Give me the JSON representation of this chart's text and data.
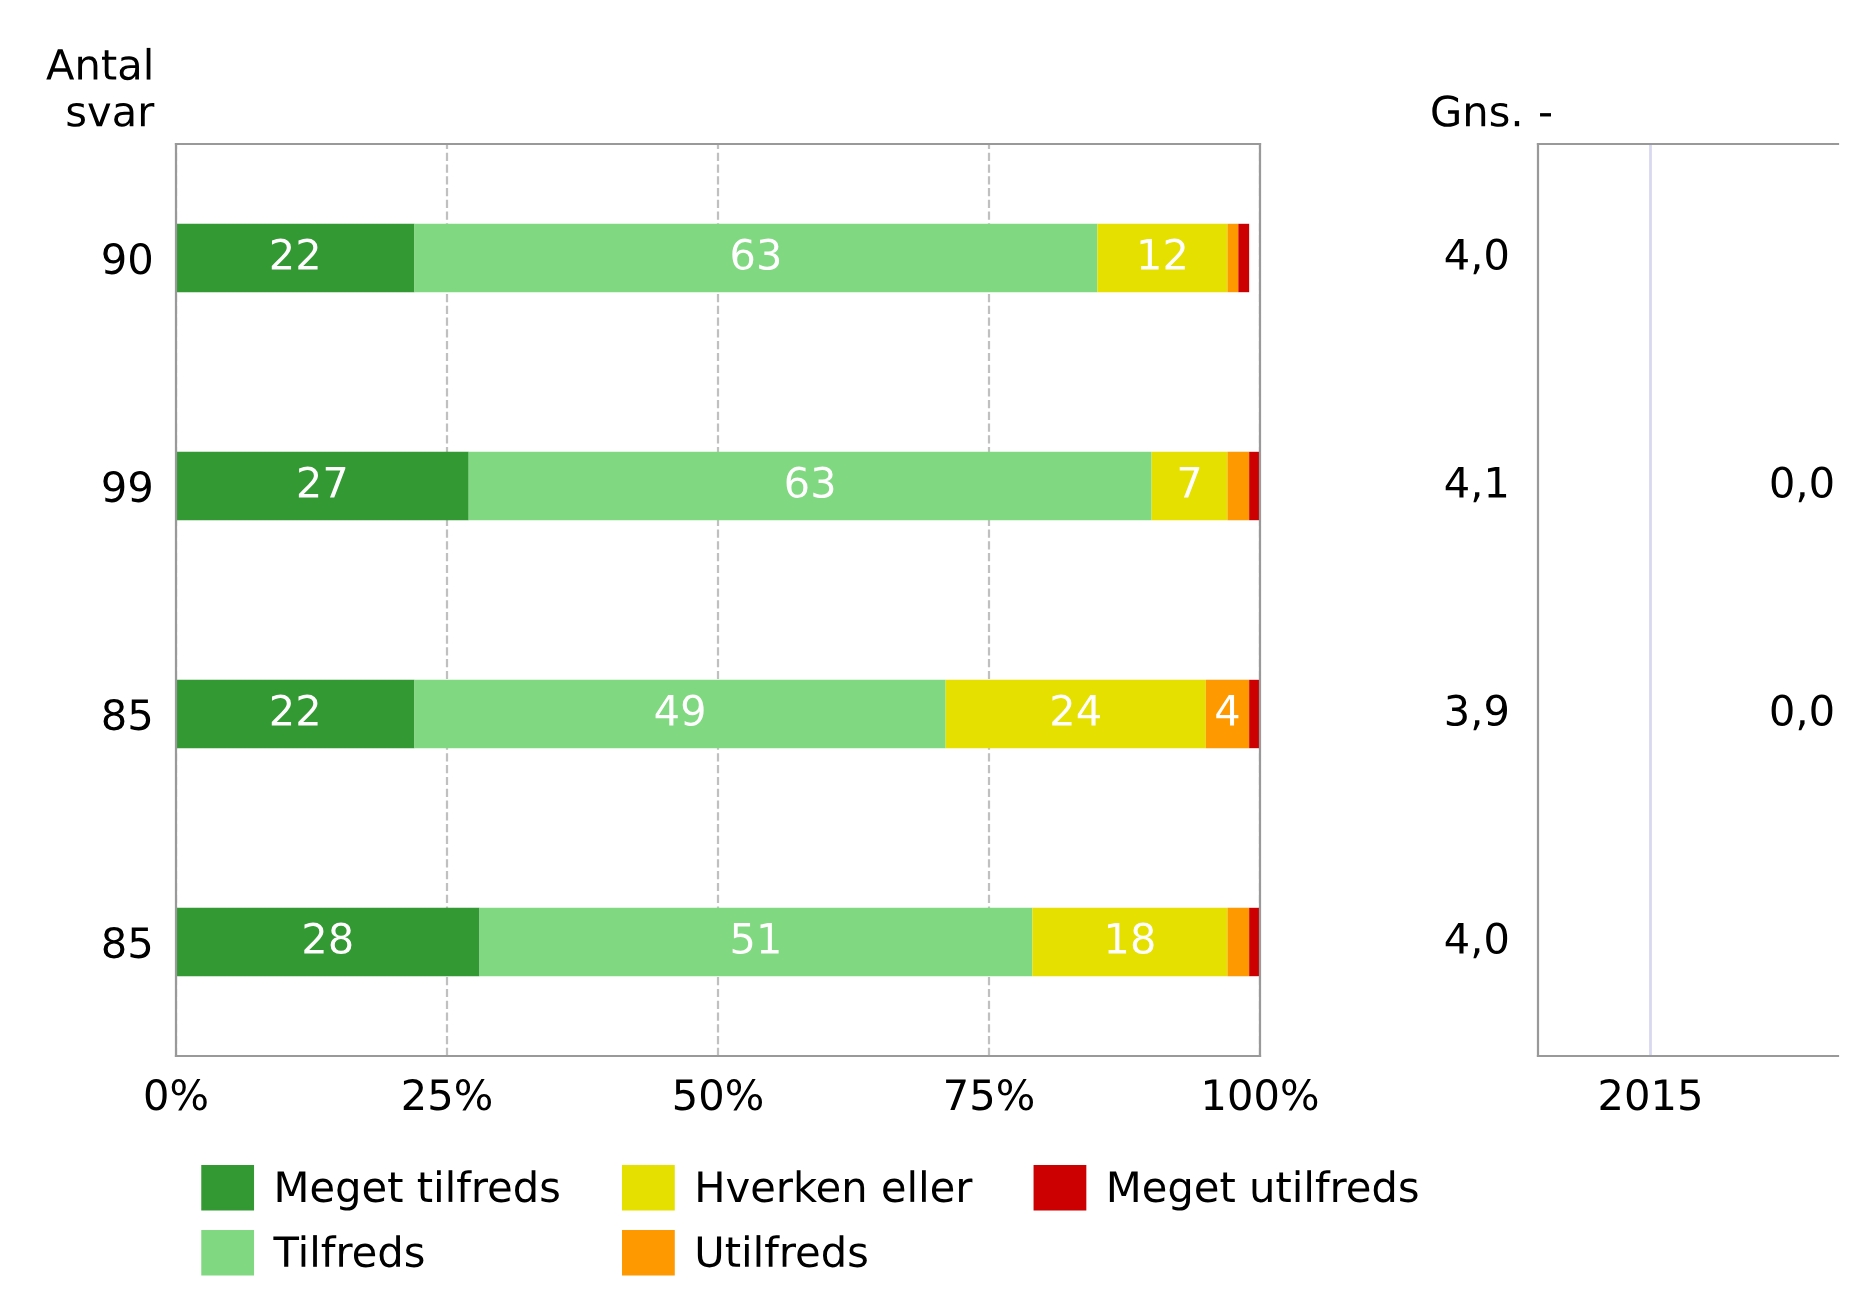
{
  "chart_data": [
    {
      "type": "bar",
      "orientation": "horizontal",
      "stacked": true,
      "ylabel": "Antal svar",
      "categories": [
        "90",
        "99",
        "85",
        "85"
      ],
      "series": [
        {
          "name": "Meget tilfreds",
          "color": "#339933",
          "values": [
            22,
            27,
            22,
            28
          ],
          "value_labels": [
            "22",
            "27",
            "22",
            "28"
          ]
        },
        {
          "name": "Tilfreds",
          "color": "#80d980",
          "values": [
            63,
            63,
            49,
            51
          ],
          "value_labels": [
            "63",
            "63",
            "49",
            "51"
          ]
        },
        {
          "name": "Hverken eller",
          "color": "#e6e000",
          "values": [
            12,
            7,
            24,
            18
          ],
          "value_labels": [
            "12",
            "7",
            "24",
            "18"
          ]
        },
        {
          "name": "Utilfreds",
          "color": "#ff9900",
          "values": [
            1,
            2,
            4,
            2
          ],
          "value_labels": [
            null,
            null,
            "4",
            null
          ]
        },
        {
          "name": "Meget utilfreds",
          "color": "#cc0000",
          "values": [
            1,
            1,
            1,
            1
          ],
          "value_labels": [
            null,
            null,
            null,
            null
          ]
        }
      ],
      "xlim": [
        0,
        100
      ],
      "xticks": [
        {
          "value": 0,
          "label": "0%"
        },
        {
          "value": 25,
          "label": "25%"
        },
        {
          "value": 50,
          "label": "50%"
        },
        {
          "value": 75,
          "label": "75%"
        },
        {
          "value": 100,
          "label": "100%"
        }
      ],
      "grid": "x",
      "legend": "bottom",
      "annotations": [
        "Gns.",
        "4,0",
        "4,1",
        "3,9",
        "4,0"
      ]
    },
    {
      "type": "other",
      "categories": [
        "2015"
      ],
      "annotations": [
        "-",
        "0,0",
        "0,0"
      ]
    }
  ]
}
